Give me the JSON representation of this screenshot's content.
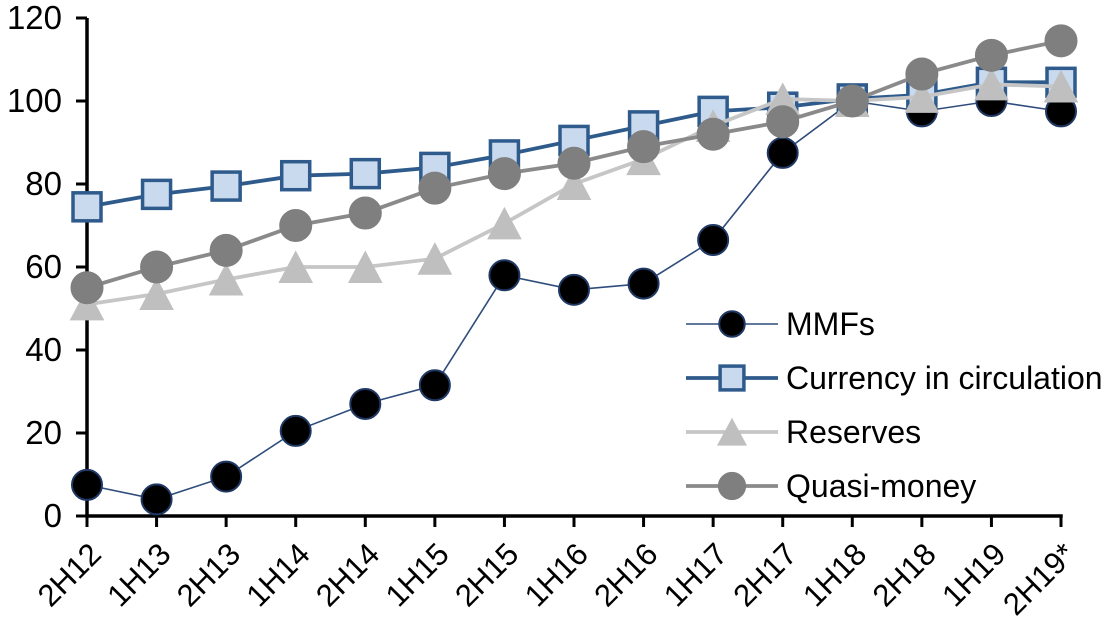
{
  "chart_data": {
    "type": "line",
    "title": "",
    "xlabel": "",
    "ylabel": "",
    "categories": [
      "2H12",
      "1H13",
      "2H13",
      "1H14",
      "2H14",
      "1H15",
      "2H15",
      "1H16",
      "2H16",
      "1H17",
      "2H17",
      "1H18",
      "2H18",
      "1H19",
      "2H19*"
    ],
    "series": [
      {
        "name": "MMFs",
        "marker": "circle",
        "marker_fill": "#000000",
        "marker_stroke": "#1F3864",
        "line_color": "#2E4D7B",
        "values": [
          7.5,
          4,
          9.5,
          20.5,
          27,
          31.5,
          58,
          54.5,
          56,
          66.5,
          87.5,
          100,
          97.5,
          100,
          97.5
        ]
      },
      {
        "name": "Currency in circulation",
        "marker": "square",
        "marker_fill": "#C9D9EE",
        "marker_stroke": "#2E5B8C",
        "line_color": "#2E5B8C",
        "values": [
          74.5,
          77.5,
          79.5,
          82,
          82.5,
          84,
          87,
          90.5,
          94,
          97.5,
          98.5,
          100.5,
          101.5,
          104.5,
          104.5
        ]
      },
      {
        "name": "Reserves",
        "marker": "triangle",
        "marker_fill": "#BFBFBF",
        "marker_stroke": "#BFBFBF",
        "line_color": "#C6C6C6",
        "values": [
          51,
          53.5,
          57,
          60,
          60,
          62,
          70.5,
          80,
          86,
          94,
          100.5,
          100,
          101,
          104,
          103.5
        ]
      },
      {
        "name": "Quasi-money",
        "marker": "circle",
        "marker_fill": "#7F7F7F",
        "marker_stroke": "#7F7F7F",
        "line_color": "#8A8A8A",
        "values": [
          55,
          60,
          64,
          70,
          73,
          79,
          82.5,
          85,
          89,
          92,
          95,
          100,
          106.5,
          111,
          114.5
        ]
      }
    ],
    "ylim": [
      0,
      120
    ],
    "ytick_step": 20,
    "grid": false,
    "legend_position": "inside-right-bottom",
    "axis_color": "#000000",
    "background_color": "#FFFFFF"
  }
}
